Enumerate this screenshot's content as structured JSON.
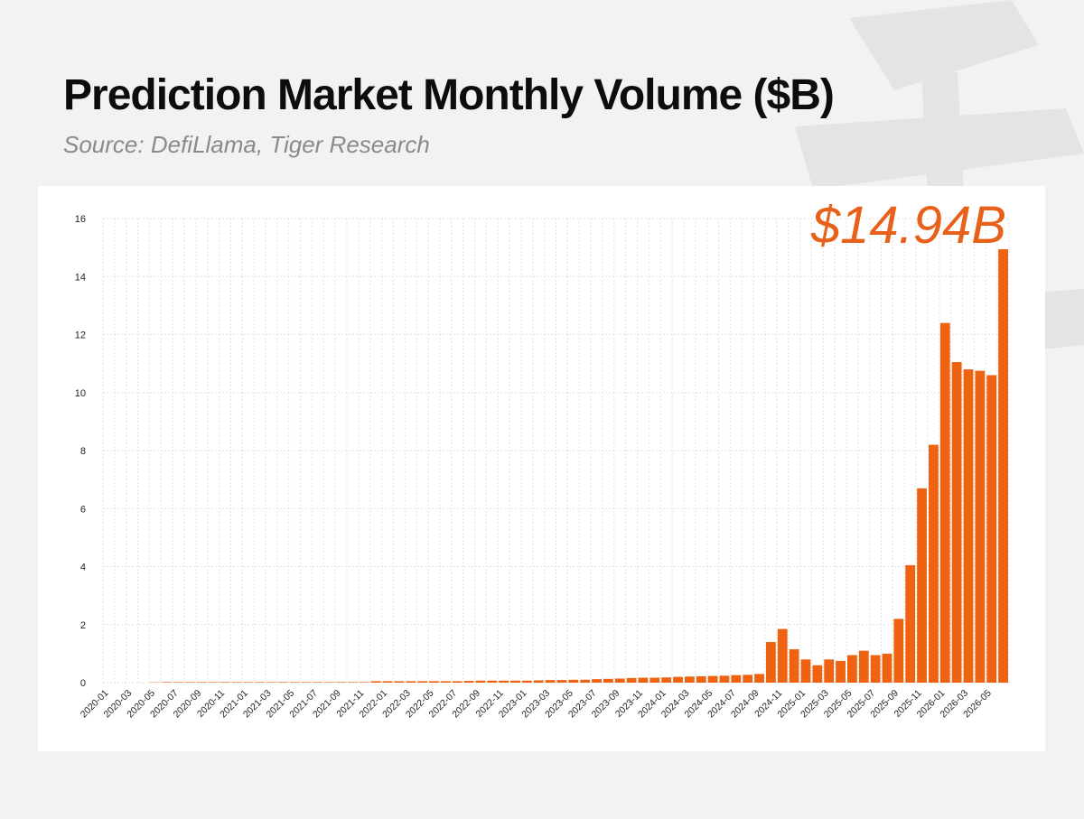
{
  "header": {
    "title": "Prediction Market Monthly Volume ($B)",
    "subtitle": "Source: DefiLlama, Tiger Research"
  },
  "highlight_label": "$14.94B",
  "colors": {
    "bar": "#ee6212",
    "highlight": "#e8611a",
    "grid": "#e3e3e3"
  },
  "chart_data": {
    "type": "bar",
    "title": "Prediction Market Monthly Volume ($B)",
    "xlabel": "",
    "ylabel": "",
    "ylim": [
      0,
      16
    ],
    "y_ticks": [
      0,
      2,
      4,
      6,
      8,
      10,
      12,
      14,
      16
    ],
    "grid": true,
    "tick_labels_every": 2,
    "categories": [
      "2020-01",
      "2020-02",
      "2020-03",
      "2020-04",
      "2020-05",
      "2020-06",
      "2020-07",
      "2020-08",
      "2020-09",
      "2020-10",
      "2020-11",
      "2020-12",
      "2021-01",
      "2021-02",
      "2021-03",
      "2021-04",
      "2021-05",
      "2021-06",
      "2021-07",
      "2021-08",
      "2021-09",
      "2021-10",
      "2021-11",
      "2021-12",
      "2022-01",
      "2022-02",
      "2022-03",
      "2022-04",
      "2022-05",
      "2022-06",
      "2022-07",
      "2022-08",
      "2022-09",
      "2022-10",
      "2022-11",
      "2022-12",
      "2023-01",
      "2023-02",
      "2023-03",
      "2023-04",
      "2023-05",
      "2023-06",
      "2023-07",
      "2023-08",
      "2023-09",
      "2023-10",
      "2023-11",
      "2023-12",
      "2024-01",
      "2024-02",
      "2024-03",
      "2024-04",
      "2024-05",
      "2024-06",
      "2024-07",
      "2024-08",
      "2024-09",
      "2024-10",
      "2024-11",
      "2024-12",
      "2025-01",
      "2025-02",
      "2025-03",
      "2025-04",
      "2025-05",
      "2025-06",
      "2025-07",
      "2025-08",
      "2025-09",
      "2025-10",
      "2025-11",
      "2025-12",
      "2026-01",
      "2026-02",
      "2026-03",
      "2026-04",
      "2026-05",
      "2026-06"
    ],
    "values": [
      0,
      0,
      0,
      0,
      0.01,
      0.02,
      0.02,
      0.02,
      0.02,
      0.02,
      0.02,
      0.02,
      0.02,
      0.02,
      0.02,
      0.02,
      0.02,
      0.02,
      0.02,
      0.02,
      0.02,
      0.02,
      0.02,
      0.05,
      0.05,
      0.05,
      0.05,
      0.05,
      0.05,
      0.05,
      0.05,
      0.06,
      0.07,
      0.07,
      0.07,
      0.07,
      0.07,
      0.08,
      0.09,
      0.09,
      0.1,
      0.1,
      0.12,
      0.13,
      0.14,
      0.16,
      0.17,
      0.17,
      0.18,
      0.2,
      0.21,
      0.22,
      0.23,
      0.24,
      0.26,
      0.27,
      0.3,
      1.4,
      1.85,
      1.15,
      0.8,
      0.6,
      0.8,
      0.75,
      0.95,
      1.1,
      0.95,
      1.0,
      2.2,
      4.05,
      6.7,
      8.2,
      12.4,
      11.05,
      10.8,
      10.75,
      10.6,
      14.94
    ]
  }
}
